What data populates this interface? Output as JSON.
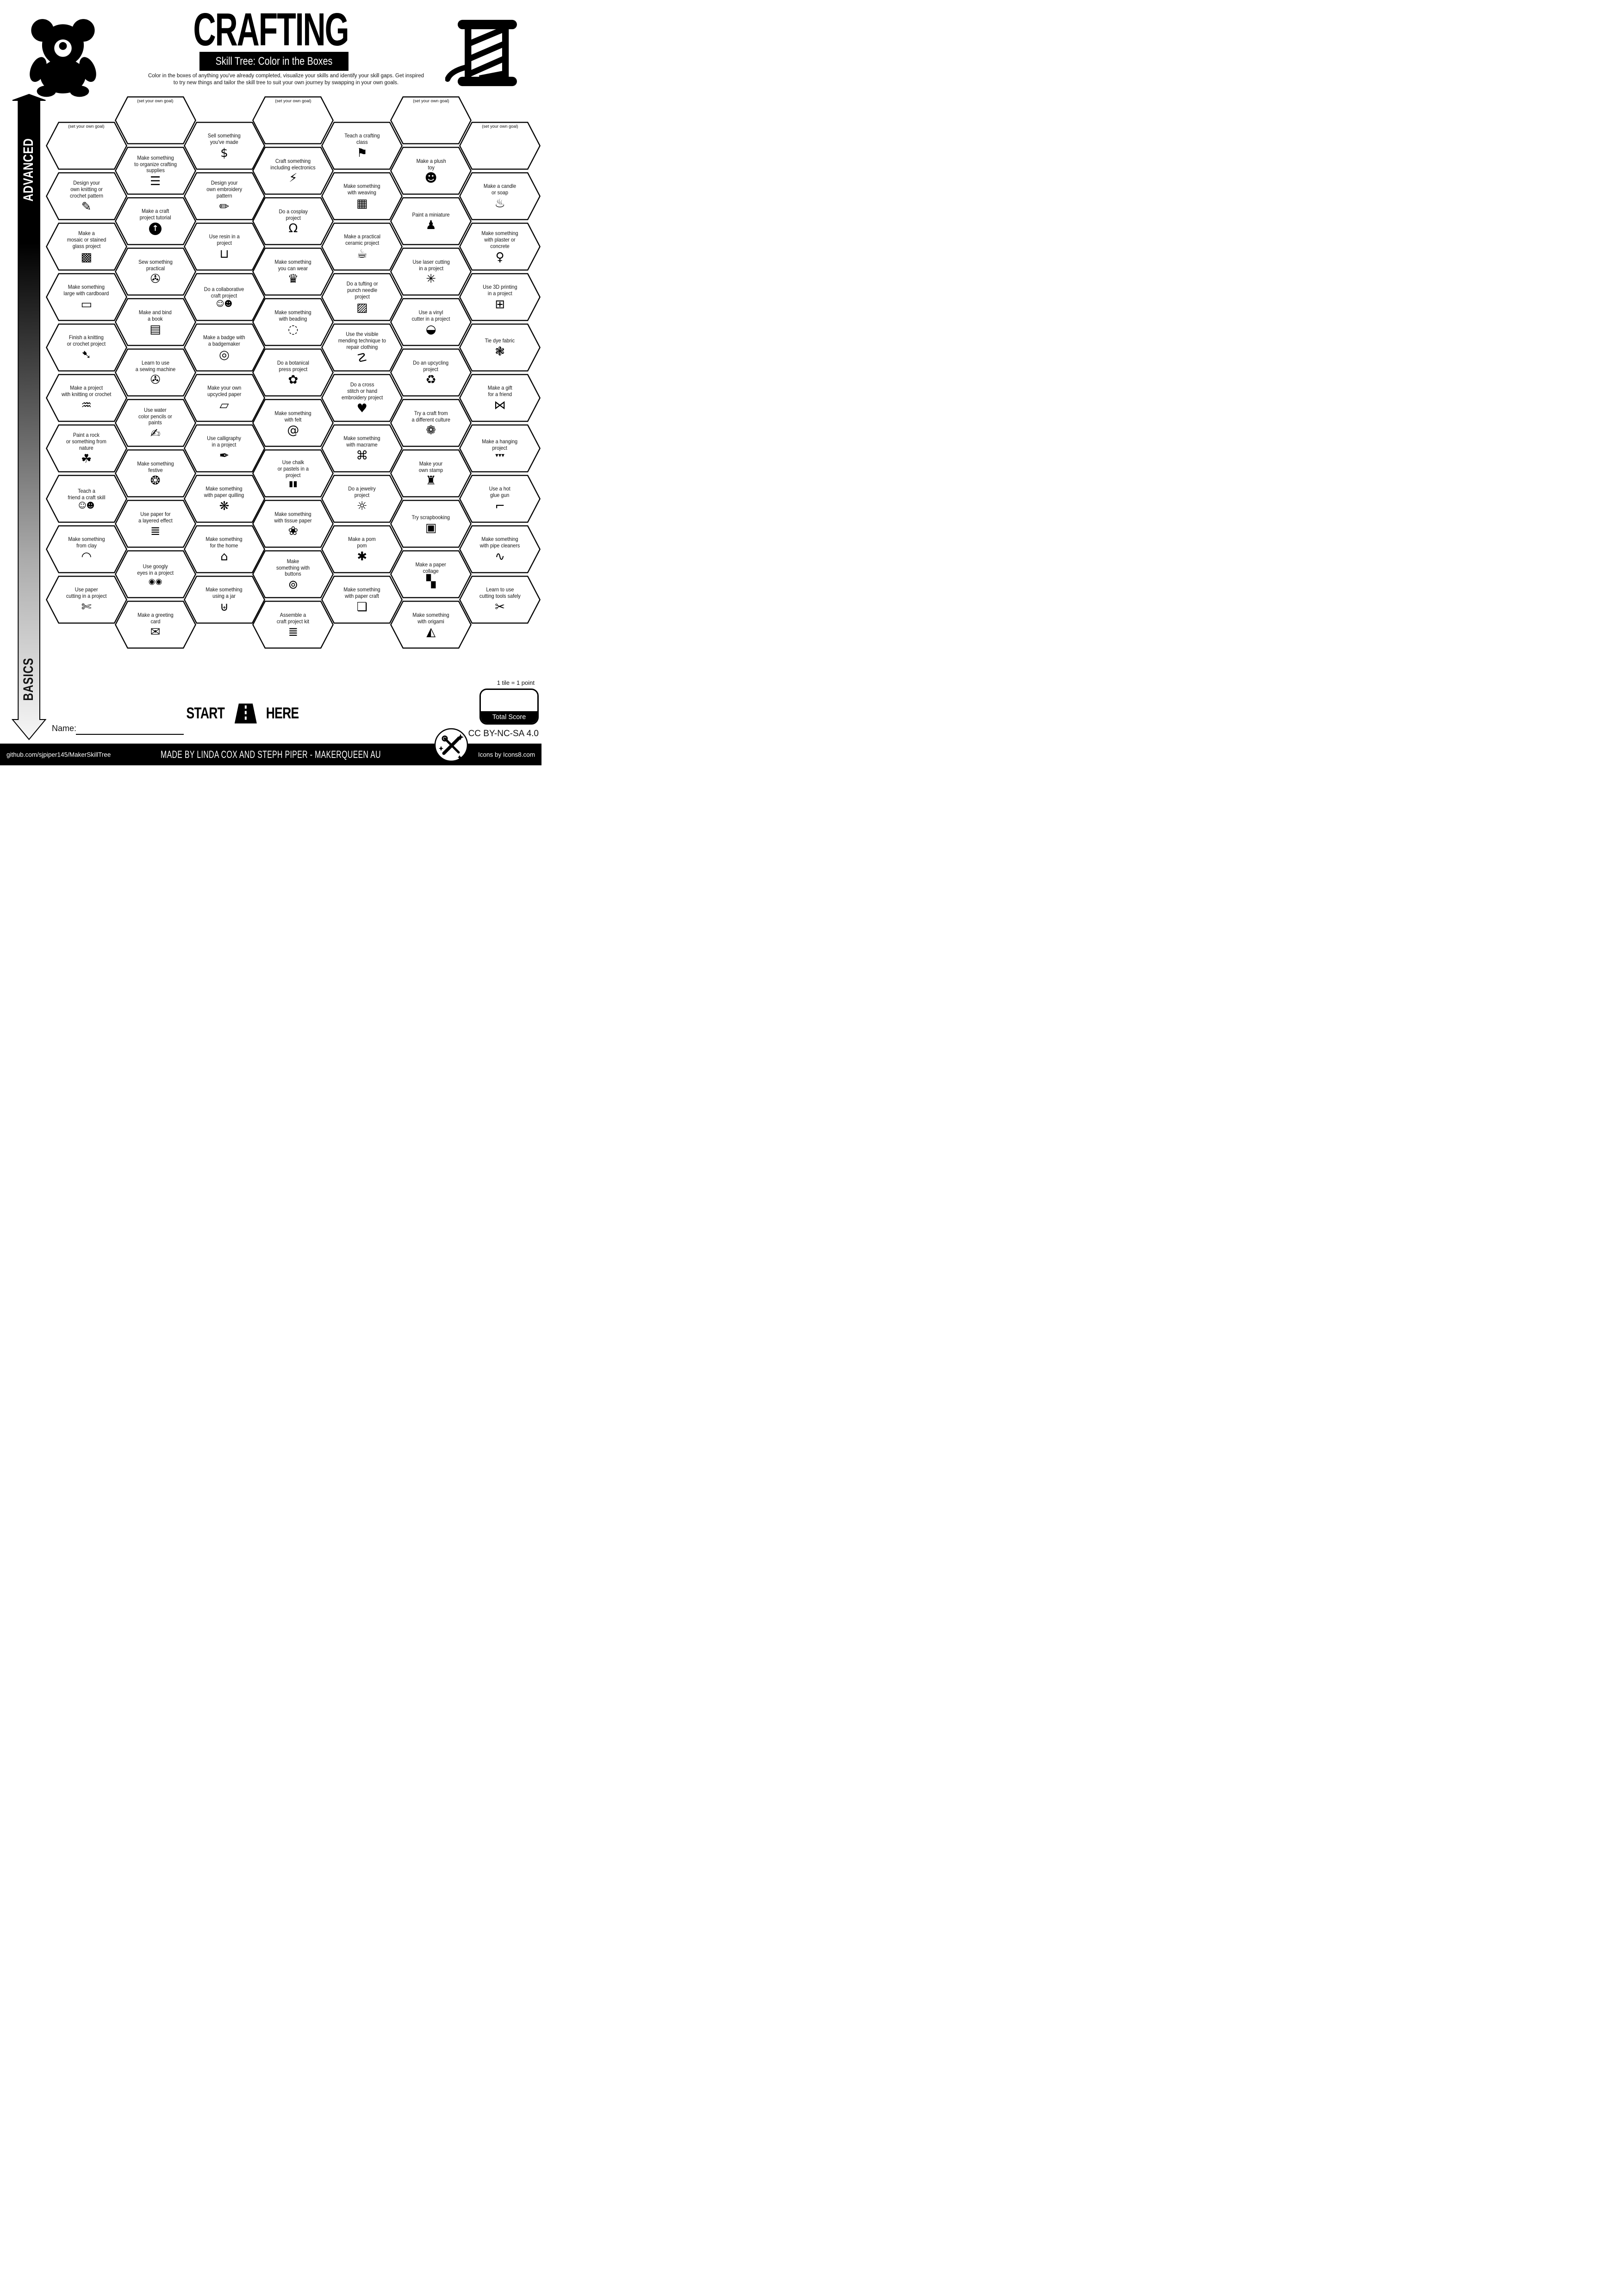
{
  "header": {
    "title": "CRAFTING",
    "subtitle": "Skill Tree: Color in the Boxes",
    "description_line1": "Color in the boxes of anything you've already completed, visualize your skills and identify your skill gaps.  Get inspired",
    "description_line2": "to try new things and tailor the skill tree to suit your own journey by swapping in your own goals.",
    "left_icon": "teddy-bear-icon",
    "right_icon": "thread-spool-icon"
  },
  "axis": {
    "top": "ADVANCED",
    "bottom": "BASICS"
  },
  "grid": {
    "columns": 7,
    "hexes": [
      {
        "col": 0,
        "row": 1,
        "goal": true,
        "lines": [
          "(set your own goal)"
        ],
        "icon": null,
        "glyph": null
      },
      {
        "col": 0,
        "row": 3,
        "lines": [
          "Design your",
          "own knitting or",
          "crochet pattern"
        ],
        "icon": "knitting-pattern-icon",
        "glyph": "✎"
      },
      {
        "col": 0,
        "row": 5,
        "lines": [
          "Make a",
          "mosaic or stained",
          "glass project"
        ],
        "icon": "mosaic-icon",
        "glyph": "▩"
      },
      {
        "col": 0,
        "row": 7,
        "lines": [
          "Make something",
          "large with cardboard"
        ],
        "icon": "cardboard-icon",
        "glyph": "▭"
      },
      {
        "col": 0,
        "row": 9,
        "lines": [
          "Finish a knitting",
          "or crochet project"
        ],
        "icon": "crochet-hook-icon",
        "glyph": "➷"
      },
      {
        "col": 0,
        "row": 11,
        "lines": [
          "Make a project",
          "with knitting or crochet"
        ],
        "icon": "knitting-icon",
        "glyph": "♒"
      },
      {
        "col": 0,
        "row": 13,
        "lines": [
          "Paint a rock",
          "or something from",
          "nature"
        ],
        "icon": "leaf-icon",
        "glyph": "☘"
      },
      {
        "col": 0,
        "row": 15,
        "lines": [
          "Teach a",
          "friend a craft skill"
        ],
        "icon": "two-people-icon",
        "glyph": "☺☻"
      },
      {
        "col": 0,
        "row": 17,
        "lines": [
          "Make something",
          "from clay"
        ],
        "icon": "rainbow-icon",
        "glyph": "◠"
      },
      {
        "col": 0,
        "row": 19,
        "lines": [
          "Use paper",
          "cutting in a project"
        ],
        "icon": "craft-knife-icon",
        "glyph": "✄"
      },
      {
        "col": 1,
        "row": 0,
        "goal": true,
        "lines": [
          "(set your own goal)"
        ],
        "icon": null,
        "glyph": null
      },
      {
        "col": 1,
        "row": 2,
        "lines": [
          "Make something",
          "to organize crafting",
          "supplies"
        ],
        "icon": "organizer-icon",
        "glyph": "☰"
      },
      {
        "col": 1,
        "row": 4,
        "lines": [
          "Make a craft",
          "project tutorial"
        ],
        "icon": "upload-circle-icon",
        "glyph": "↑",
        "variant": "inverse"
      },
      {
        "col": 1,
        "row": 6,
        "lines": [
          "Sew something",
          "practical"
        ],
        "icon": "sewing-machine-icon",
        "glyph": "✇"
      },
      {
        "col": 1,
        "row": 8,
        "lines": [
          "Make and bind",
          "a book"
        ],
        "icon": "book-icon",
        "glyph": "▤"
      },
      {
        "col": 1,
        "row": 10,
        "lines": [
          "Learn to use",
          "a sewing machine"
        ],
        "icon": "sewing-machine-icon",
        "glyph": "✇"
      },
      {
        "col": 1,
        "row": 12,
        "lines": [
          "Use water",
          "color pencils or",
          "paints"
        ],
        "icon": "paintbrush-icon",
        "glyph": "✍"
      },
      {
        "col": 1,
        "row": 14,
        "lines": [
          "Make something",
          "festive"
        ],
        "icon": "bauble-icon",
        "glyph": "❂"
      },
      {
        "col": 1,
        "row": 16,
        "lines": [
          "Use paper for",
          "a layered effect"
        ],
        "icon": "layered-paper-icon",
        "glyph": "≣"
      },
      {
        "col": 1,
        "row": 18,
        "lines": [
          "Use googly",
          "eyes in a project"
        ],
        "icon": "googly-eyes-icon",
        "glyph": "◉◉"
      },
      {
        "col": 1,
        "row": 20,
        "lines": [
          "Make a greeting",
          "card"
        ],
        "icon": "greeting-card-icon",
        "glyph": "✉"
      },
      {
        "col": 2,
        "row": 1,
        "lines": [
          "Sell something",
          "you've made"
        ],
        "icon": "money-bag-icon",
        "glyph": "$"
      },
      {
        "col": 2,
        "row": 3,
        "lines": [
          "Design your",
          "own embroidery",
          "pattern"
        ],
        "icon": "embroidery-pattern-icon",
        "glyph": "✏"
      },
      {
        "col": 2,
        "row": 5,
        "lines": [
          "Use resin in a",
          "project"
        ],
        "icon": "paint-bucket-icon",
        "glyph": "⊔"
      },
      {
        "col": 2,
        "row": 7,
        "lines": [
          "Do a collaborative",
          "craft project"
        ],
        "icon": "collaboration-icon",
        "glyph": "☺☻"
      },
      {
        "col": 2,
        "row": 9,
        "lines": [
          "Make a badge with",
          "a badgemaker"
        ],
        "icon": "badge-icon",
        "glyph": "◎"
      },
      {
        "col": 2,
        "row": 11,
        "lines": [
          "Make your own",
          "upcycled paper"
        ],
        "icon": "paper-scroll-icon",
        "glyph": "▱"
      },
      {
        "col": 2,
        "row": 13,
        "lines": [
          "Use calligraphy",
          "in a project"
        ],
        "icon": "calligraphy-pen-icon",
        "glyph": "✒"
      },
      {
        "col": 2,
        "row": 15,
        "lines": [
          "Make something",
          "with paper quilling"
        ],
        "icon": "quilling-spiral-icon",
        "glyph": "❋"
      },
      {
        "col": 2,
        "row": 17,
        "lines": [
          "Make something",
          "for the home"
        ],
        "icon": "house-icon",
        "glyph": "⌂"
      },
      {
        "col": 2,
        "row": 19,
        "lines": [
          "Make something",
          "using a jar"
        ],
        "icon": "jar-icon",
        "glyph": "⊎"
      },
      {
        "col": 3,
        "row": 0,
        "goal": true,
        "lines": [
          "(set your own goal)"
        ],
        "icon": null,
        "glyph": null
      },
      {
        "col": 3,
        "row": 2,
        "lines": [
          "Craft something",
          "including electronics"
        ],
        "icon": "led-bolt-icon",
        "glyph": "⚡"
      },
      {
        "col": 3,
        "row": 4,
        "lines": [
          "Do a cosplay",
          "project"
        ],
        "icon": "mannequin-icon",
        "glyph": "Ω"
      },
      {
        "col": 3,
        "row": 6,
        "lines": [
          "Make something",
          "you can wear"
        ],
        "icon": "hat-icon",
        "glyph": "♛"
      },
      {
        "col": 3,
        "row": 8,
        "lines": [
          "Make something",
          "with beading"
        ],
        "icon": "bead-necklace-icon",
        "glyph": "◌"
      },
      {
        "col": 3,
        "row": 10,
        "lines": [
          "Do a botanical",
          "press project"
        ],
        "icon": "flower-icon",
        "glyph": "✿"
      },
      {
        "col": 3,
        "row": 12,
        "lines": [
          "Make something",
          "with felt"
        ],
        "icon": "felt-roll-icon",
        "glyph": "@"
      },
      {
        "col": 3,
        "row": 14,
        "lines": [
          "Use chalk",
          "or pastels in a",
          "project"
        ],
        "icon": "chalk-sticks-icon",
        "glyph": "▮▮"
      },
      {
        "col": 3,
        "row": 16,
        "lines": [
          "Make something",
          "with tissue paper"
        ],
        "icon": "lotus-icon",
        "glyph": "❀"
      },
      {
        "col": 3,
        "row": 18,
        "lines": [
          "Make",
          "something with",
          "buttons"
        ],
        "icon": "button-icon",
        "glyph": "⊚"
      },
      {
        "col": 3,
        "row": 20,
        "lines": [
          "Assemble a",
          "craft project kit"
        ],
        "icon": "kit-stack-icon",
        "glyph": "≣"
      },
      {
        "col": 4,
        "row": 1,
        "lines": [
          "Teach a crafting",
          "class"
        ],
        "icon": "presentation-icon",
        "glyph": "⚑"
      },
      {
        "col": 4,
        "row": 3,
        "lines": [
          "Make something",
          "with weaving"
        ],
        "icon": "weaving-icon",
        "glyph": "▦"
      },
      {
        "col": 4,
        "row": 5,
        "lines": [
          "Make a practical",
          "ceramic project"
        ],
        "icon": "mug-icon",
        "glyph": "☕"
      },
      {
        "col": 4,
        "row": 7,
        "lines": [
          "Do a tufting or",
          "punch needle",
          "project"
        ],
        "icon": "rug-icon",
        "glyph": "▨"
      },
      {
        "col": 4,
        "row": 9,
        "lines": [
          "Use the visible",
          "mending technique to",
          "repair clothing"
        ],
        "icon": "needle-thread-icon",
        "glyph": "☡"
      },
      {
        "col": 4,
        "row": 11,
        "lines": [
          "Do a cross",
          "stitch or hand",
          "embroidery project"
        ],
        "icon": "cross-stitch-heart-icon",
        "glyph": "♥"
      },
      {
        "col": 4,
        "row": 13,
        "lines": [
          "Make something",
          "with macrame"
        ],
        "icon": "dreamcatcher-icon",
        "glyph": "⌘"
      },
      {
        "col": 4,
        "row": 15,
        "lines": [
          "Do a jewelry",
          "project"
        ],
        "icon": "ring-icon",
        "glyph": "☼"
      },
      {
        "col": 4,
        "row": 17,
        "lines": [
          "Make a pom",
          "pom"
        ],
        "icon": "pom-pom-icon",
        "glyph": "✱"
      },
      {
        "col": 4,
        "row": 19,
        "lines": [
          "Make something",
          "with paper craft"
        ],
        "icon": "paper-craft-icon",
        "glyph": "❏"
      },
      {
        "col": 5,
        "row": 0,
        "goal": true,
        "lines": [
          "(set your own goal)"
        ],
        "icon": null,
        "glyph": null
      },
      {
        "col": 5,
        "row": 2,
        "lines": [
          "Make a plush",
          "toy"
        ],
        "icon": "teddy-bear-icon",
        "glyph": "☻"
      },
      {
        "col": 5,
        "row": 4,
        "lines": [
          "Paint a miniature"
        ],
        "icon": "miniature-figure-icon",
        "glyph": "♟"
      },
      {
        "col": 5,
        "row": 6,
        "lines": [
          "Use laser cutting",
          "in a project"
        ],
        "icon": "laser-burst-icon",
        "glyph": "✳"
      },
      {
        "col": 5,
        "row": 8,
        "lines": [
          "Use a vinyl",
          "cutter in a project"
        ],
        "icon": "vinyl-sticker-icon",
        "glyph": "◒"
      },
      {
        "col": 5,
        "row": 10,
        "lines": [
          "Do an upcycling",
          "project"
        ],
        "icon": "recycle-icon",
        "glyph": "♻"
      },
      {
        "col": 5,
        "row": 12,
        "lines": [
          "Try a craft from",
          "a different culture"
        ],
        "icon": "mandala-icon",
        "glyph": "❁"
      },
      {
        "col": 5,
        "row": 14,
        "lines": [
          "Make your",
          "own stamp"
        ],
        "icon": "stamp-icon",
        "glyph": "♜"
      },
      {
        "col": 5,
        "row": 16,
        "lines": [
          "Try scrapbooking"
        ],
        "icon": "photo-icon",
        "glyph": "▣"
      },
      {
        "col": 5,
        "row": 18,
        "lines": [
          "Make a paper",
          "collage"
        ],
        "icon": "collage-icon",
        "glyph": "▚"
      },
      {
        "col": 5,
        "row": 20,
        "lines": [
          "Make something",
          "with origami"
        ],
        "icon": "origami-swan-icon",
        "glyph": "◭"
      },
      {
        "col": 6,
        "row": 1,
        "goal": true,
        "lines": [
          "(set your own goal)"
        ],
        "icon": null,
        "glyph": null
      },
      {
        "col": 6,
        "row": 3,
        "lines": [
          "Make a candle",
          "or soap"
        ],
        "icon": "candle-icon",
        "glyph": "♨"
      },
      {
        "col": 6,
        "row": 5,
        "lines": [
          "Make something",
          "with plaster or",
          "concrete"
        ],
        "icon": "statue-icon",
        "glyph": "♀"
      },
      {
        "col": 6,
        "row": 7,
        "lines": [
          "Use 3D printing",
          "in a project"
        ],
        "icon": "printer-3d-icon",
        "glyph": "⊞"
      },
      {
        "col": 6,
        "row": 9,
        "lines": [
          "Tie dye fabric"
        ],
        "icon": "tie-dye-spiral-icon",
        "glyph": "❃"
      },
      {
        "col": 6,
        "row": 11,
        "lines": [
          "Make a gift",
          "for a friend"
        ],
        "icon": "gift-bow-icon",
        "glyph": "⋈"
      },
      {
        "col": 6,
        "row": 13,
        "lines": [
          "Make a hanging",
          "project"
        ],
        "icon": "bunting-icon",
        "glyph": "▾▾▾"
      },
      {
        "col": 6,
        "row": 15,
        "lines": [
          "Use a hot",
          "glue gun"
        ],
        "icon": "glue-gun-icon",
        "glyph": "⌐"
      },
      {
        "col": 6,
        "row": 17,
        "lines": [
          "Make something",
          "with pipe cleaners"
        ],
        "icon": "pipe-cleaner-icon",
        "glyph": "∿"
      },
      {
        "col": 6,
        "row": 19,
        "lines": [
          "Learn to use",
          "cutting tools safely"
        ],
        "icon": "box-cutter-icon",
        "glyph": "✂"
      }
    ]
  },
  "start": {
    "start": "START",
    "here": "HERE",
    "icon": "road-icon"
  },
  "name_field": {
    "label": "Name:"
  },
  "score": {
    "note": "1 tile = 1 point",
    "label": "Total Score"
  },
  "license": {
    "text": "CC BY-NC-SA 4.0",
    "badge_icon": "maker-badge-icon"
  },
  "footer": {
    "left": "github.com/sjpiper145/MakerSkillTree",
    "center": "MADE BY LINDA COX  AND STEPH PIPER  -  MAKERQUEEN AU",
    "right": "Icons by Icons8.com"
  },
  "colors": {
    "ink": "#000000",
    "paper": "#ffffff"
  }
}
